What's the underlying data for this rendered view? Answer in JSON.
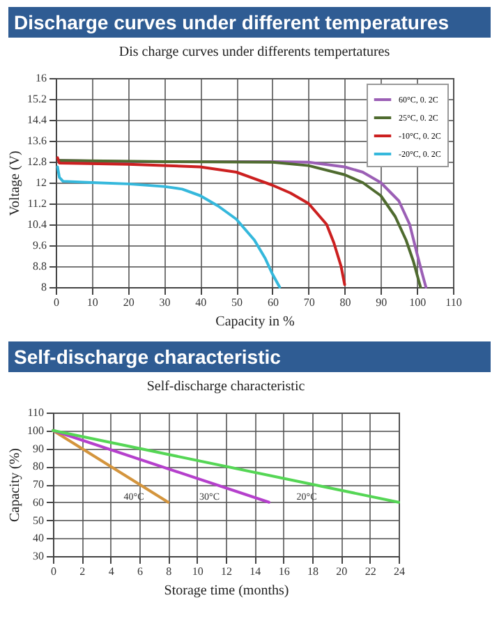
{
  "chart_data": [
    {
      "type": "line",
      "title": "Discharge curves under different temperatures",
      "subtitle": "Dis charge curves under differents tempertatures",
      "xlabel": "Capacity in %",
      "ylabel": "Voltage (V)",
      "xlim": [
        0,
        110
      ],
      "xticks": [
        0,
        10,
        20,
        30,
        40,
        50,
        60,
        70,
        80,
        90,
        100,
        110
      ],
      "ylim": [
        8,
        16
      ],
      "yticks": [
        8,
        8.8,
        9.6,
        10.4,
        11.2,
        12,
        12.8,
        13.6,
        14.4,
        15.2,
        16
      ],
      "grid": true,
      "legend": "top right",
      "marker": "none",
      "line_style": "solid",
      "series": [
        {
          "name": "60°C, 0. 2C",
          "color": "#9b5fb5",
          "x": [
            1,
            20,
            60,
            70,
            80,
            85,
            90,
            95,
            98,
            100,
            101.5,
            102.5
          ],
          "values": [
            12.85,
            12.8,
            12.8,
            12.78,
            12.6,
            12.4,
            12.0,
            11.3,
            10.4,
            9.3,
            8.5,
            8
          ]
        },
        {
          "name": "25°C, 0. 2C",
          "color": "#4f6b2f",
          "x": [
            1,
            30,
            60,
            70,
            80,
            85,
            90,
            94,
            97,
            99,
            101
          ],
          "values": [
            12.85,
            12.8,
            12.78,
            12.65,
            12.3,
            12.0,
            11.5,
            10.7,
            9.8,
            9,
            8
          ]
        },
        {
          "name": "-10°C, 0. 2C",
          "color": "#cc2020",
          "x": [
            0.5,
            1,
            20,
            40,
            50,
            60,
            65,
            70,
            75,
            77,
            79,
            80
          ],
          "values": [
            12.95,
            12.75,
            12.7,
            12.6,
            12.4,
            11.9,
            11.6,
            11.2,
            10.4,
            9.7,
            8.8,
            8.1
          ]
        },
        {
          "name": "-20°C, 0. 2C",
          "color": "#35b8dc",
          "x": [
            0.5,
            1,
            2,
            10,
            20,
            30,
            35,
            40,
            45,
            50,
            55,
            58,
            60,
            62
          ],
          "values": [
            12.6,
            12.2,
            12.05,
            12.0,
            11.95,
            11.85,
            11.75,
            11.5,
            11.1,
            10.6,
            9.8,
            9.1,
            8.5,
            8
          ]
        }
      ]
    },
    {
      "type": "line",
      "title": "Self-discharge characteristic",
      "subtitle": "Self-discharge characteristic",
      "xlabel": "Storage time (months)",
      "ylabel": "Capacity (%)",
      "xlim": [
        0,
        24
      ],
      "xticks": [
        0,
        2,
        4,
        6,
        8,
        10,
        12,
        14,
        16,
        18,
        20,
        22,
        24
      ],
      "ylim": [
        30,
        110
      ],
      "yticks": [
        30,
        40,
        50,
        60,
        70,
        80,
        90,
        100,
        110
      ],
      "grid": true,
      "marker": "none",
      "line_style": "solid",
      "series": [
        {
          "name": "40°C",
          "color": "#d4953d",
          "x": [
            0,
            8
          ],
          "values": [
            100,
            60
          ]
        },
        {
          "name": "30°C",
          "color": "#b540cc",
          "x": [
            0,
            15
          ],
          "values": [
            100,
            60
          ]
        },
        {
          "name": "20°C",
          "color": "#55d655",
          "x": [
            0,
            24
          ],
          "values": [
            100,
            60
          ]
        }
      ]
    }
  ]
}
